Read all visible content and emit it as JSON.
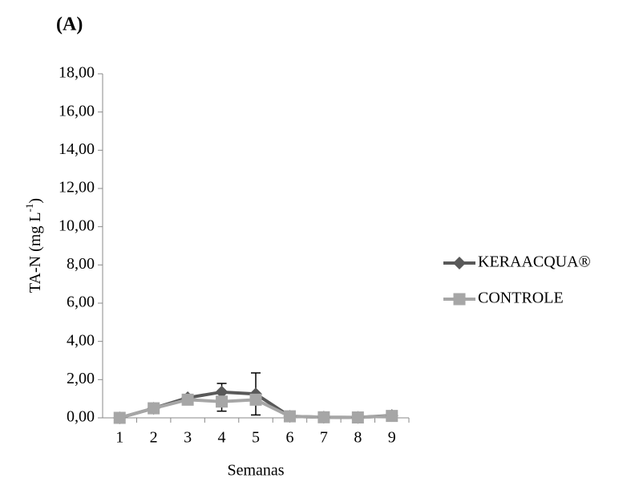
{
  "chart_data": {
    "type": "line",
    "panel_label": "(A)",
    "xlabel": "Semanas",
    "ylabel": {
      "text": "TA-N (mg L",
      "superscript": "-1",
      "suffix": ")"
    },
    "categories": [
      "1",
      "2",
      "3",
      "4",
      "5",
      "6",
      "7",
      "8",
      "9"
    ],
    "series": [
      {
        "name": "KERAACQUA®",
        "color": "#595959",
        "marker": "diamond",
        "values": [
          0.0,
          0.5,
          1.05,
          1.35,
          1.25,
          0.08,
          0.03,
          0.02,
          0.12
        ],
        "errors": [
          null,
          null,
          null,
          0.45,
          1.1,
          null,
          null,
          null,
          null
        ]
      },
      {
        "name": "CONTROLE",
        "color": "#a6a6a6",
        "marker": "square",
        "values": [
          0.0,
          0.5,
          0.95,
          0.85,
          0.95,
          0.08,
          0.03,
          0.02,
          0.1
        ],
        "errors": [
          null,
          null,
          null,
          0.5,
          null,
          null,
          null,
          null,
          null
        ]
      }
    ],
    "ylim": [
      0,
      18
    ],
    "yticks": [
      {
        "value": 0,
        "label": "0,00"
      },
      {
        "value": 2,
        "label": "2,00"
      },
      {
        "value": 4,
        "label": "4,00"
      },
      {
        "value": 6,
        "label": "6,00"
      },
      {
        "value": 8,
        "label": "8,00"
      },
      {
        "value": 10,
        "label": "10,00"
      },
      {
        "value": 12,
        "label": "12,00"
      },
      {
        "value": 14,
        "label": "14,00"
      },
      {
        "value": 16,
        "label": "16,00"
      },
      {
        "value": 18,
        "label": "18,00"
      }
    ],
    "grid": false,
    "legend": "right"
  }
}
